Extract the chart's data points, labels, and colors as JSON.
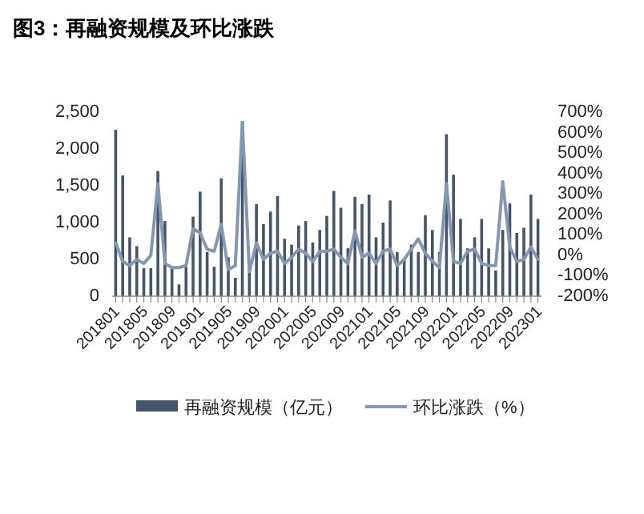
{
  "chart_data": {
    "type": "bar",
    "title": "图3：再融资规模及环比涨跌",
    "categories": [
      "201801",
      null,
      null,
      null,
      "201805",
      null,
      null,
      null,
      "201809",
      null,
      null,
      null,
      "201901",
      null,
      null,
      null,
      "201905",
      null,
      null,
      null,
      "201909",
      null,
      null,
      null,
      "202001",
      null,
      null,
      null,
      "202005",
      null,
      null,
      null,
      "202009",
      null,
      null,
      null,
      "202101",
      null,
      null,
      null,
      "202105",
      null,
      null,
      null,
      "202109",
      null,
      null,
      null,
      "202201",
      null,
      null,
      null,
      "202205",
      null,
      null,
      null,
      "202209",
      null,
      null,
      null,
      "202301"
    ],
    "series": [
      {
        "name": "再融资规模（亿元）",
        "axis": "y",
        "color": "#44546a",
        "values": [
          2260,
          1640,
          800,
          680,
          380,
          380,
          1700,
          1020,
          380,
          160,
          400,
          1080,
          1420,
          600,
          400,
          1600,
          530,
          250,
          2380,
          350,
          1250,
          980,
          1150,
          1360,
          780,
          700,
          960,
          1020,
          730,
          900,
          1090,
          1430,
          1200,
          650,
          1350,
          1250,
          1380,
          800,
          1000,
          1300,
          600,
          500,
          700,
          600,
          1100,
          900,
          600,
          2200,
          1650,
          1050,
          650,
          800,
          1050,
          650,
          350,
          900,
          1260,
          860,
          930,
          1380,
          1050
        ]
      },
      {
        "name": "环比涨跌（%）",
        "type": "line",
        "axis": "y2",
        "color": "#8497b0",
        "values": [
          60,
          -30,
          -50,
          -20,
          -40,
          0,
          350,
          -40,
          -60,
          -60,
          -50,
          130,
          110,
          30,
          20,
          150,
          -70,
          -50,
          650,
          -80,
          60,
          -20,
          10,
          20,
          -40,
          -10,
          30,
          10,
          -30,
          20,
          20,
          30,
          -10,
          -40,
          120,
          -10,
          10,
          -40,
          20,
          30,
          -50,
          -20,
          30,
          80,
          10,
          -30,
          -60,
          350,
          -30,
          -40,
          20,
          30,
          -40,
          -50,
          -50,
          360,
          40,
          -30,
          -20,
          40,
          -20
        ]
      }
    ],
    "ylim": [
      0,
      2500
    ],
    "yticks": [
      0,
      500,
      {
        "value": 1000,
        "label": "1,000"
      },
      {
        "value": 1500,
        "label": "1,500"
      },
      {
        "value": 2000,
        "label": "2,000"
      },
      {
        "value": 2500,
        "label": "2,500"
      }
    ],
    "y2lim": [
      -200,
      700
    ],
    "y2ticks": [
      {
        "value": -200,
        "label": "-200%"
      },
      {
        "value": -100,
        "label": "-100%"
      },
      {
        "value": 0,
        "label": "0%"
      },
      {
        "value": 100,
        "label": "100%"
      },
      {
        "value": 200,
        "label": "200%"
      },
      {
        "value": 300,
        "label": "300%"
      },
      {
        "value": 400,
        "label": "400%"
      },
      {
        "value": 500,
        "label": "500%"
      },
      {
        "value": 600,
        "label": "600%"
      },
      {
        "value": 700,
        "label": "700%"
      }
    ],
    "grid": false,
    "legend": "bottom",
    "marker": "none",
    "line_style": "solid"
  }
}
